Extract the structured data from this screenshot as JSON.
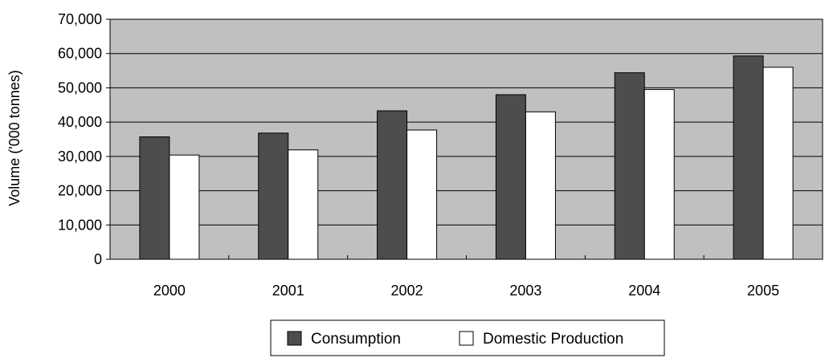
{
  "chart_data": {
    "type": "bar",
    "title": "",
    "xlabel": "",
    "ylabel": "Volume ('000 tonnes)",
    "categories": [
      "2000",
      "2001",
      "2002",
      "2003",
      "2004",
      "2005"
    ],
    "series": [
      {
        "name": "Consumption",
        "color": "#4d4d4d",
        "values": [
          35700,
          36800,
          43300,
          48000,
          54400,
          59300
        ]
      },
      {
        "name": "Domestic Production",
        "color": "#ffffff",
        "values": [
          30400,
          31900,
          37700,
          43000,
          49500,
          56000
        ]
      }
    ],
    "ylim": [
      0,
      70000
    ],
    "yticks": [
      "0",
      "10,000",
      "20,000",
      "30,000",
      "40,000",
      "50,000",
      "60,000",
      "70,000"
    ],
    "grid": true,
    "plot_background": "#c0c0c0",
    "legend_position": "bottom"
  }
}
